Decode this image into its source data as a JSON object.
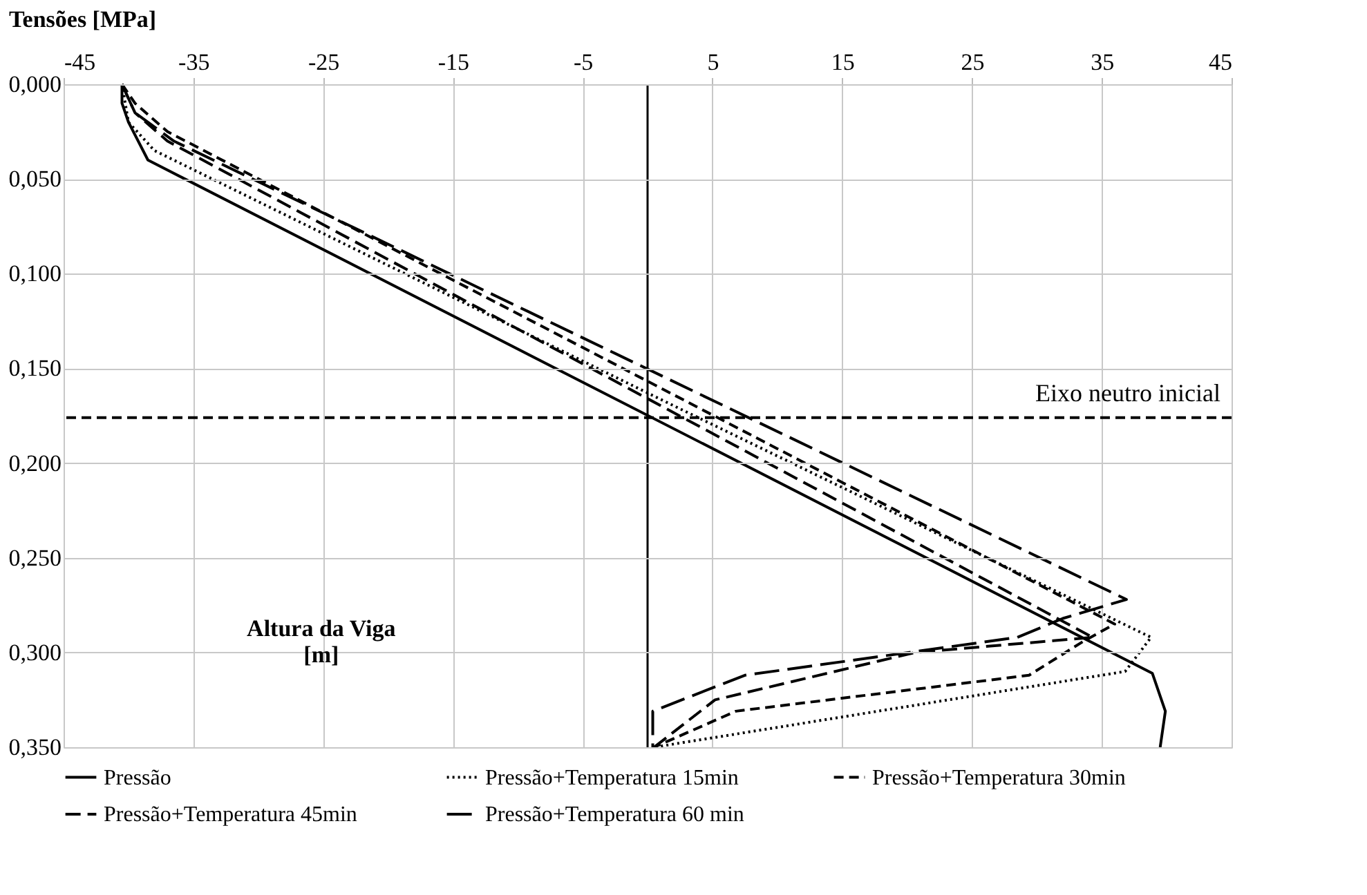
{
  "chart_data": {
    "type": "line",
    "xlabel": "Tensões [MPa]",
    "ylabel": "Altura da Viga [m]",
    "xlim": [
      -45,
      45
    ],
    "xticks": [
      -45,
      -35,
      -25,
      -15,
      -5,
      5,
      15,
      25,
      35,
      45
    ],
    "ylim": [
      0.35,
      0
    ],
    "yticks": [
      {
        "value": 0,
        "label": "0,000"
      },
      {
        "value": 0.05,
        "label": "0,050"
      },
      {
        "value": 0.1,
        "label": "0,100"
      },
      {
        "value": 0.15,
        "label": "0,150"
      },
      {
        "value": 0.2,
        "label": "0,200"
      },
      {
        "value": 0.25,
        "label": "0,250"
      },
      {
        "value": 0.3,
        "label": "0,300"
      },
      {
        "value": 0.35,
        "label": "0,350"
      }
    ],
    "grid": true,
    "legend": "bottom",
    "marker": "none",
    "series": [
      {
        "name": "Pressão",
        "color": "#000000",
        "line_style": "solid",
        "x": [
          -40.5,
          -40.5,
          -40,
          -38.5,
          38.9,
          39.9,
          39.5
        ],
        "values": [
          0,
          0.01,
          0.02,
          0.04,
          0.311,
          0.331,
          0.35
        ]
      },
      {
        "name": "Pressão+Temperatura 15min",
        "color": "#000000",
        "line_style": "dotted",
        "x": [
          -40.5,
          -40,
          -38,
          1.5,
          38.8,
          36.8,
          0.5
        ],
        "values": [
          0,
          0.02,
          0.035,
          0.168,
          0.292,
          0.31,
          0.35
        ]
      },
      {
        "name": "Pressão+Temperatura 30min",
        "color": "#000000",
        "line_style": "dashed",
        "x": [
          -40.5,
          -39.5,
          -37,
          36,
          33.6,
          29.4,
          6.8,
          0.5
        ],
        "values": [
          0,
          0.01,
          0.025,
          0.285,
          0.294,
          0.312,
          0.331,
          0.35
        ]
      },
      {
        "name": "Pressão+Temperatura 45min",
        "color": "#000000",
        "line_style": "dashed",
        "x": [
          -40.5,
          -39.5,
          -37,
          34.3,
          20.6,
          5.2,
          0.5
        ],
        "values": [
          0,
          0.015,
          0.03,
          0.292,
          0.3,
          0.325,
          0.35
        ]
      },
      {
        "name": "Pressão+Temperatura 60 min",
        "color": "#000000",
        "line_style": "dashed",
        "x": [
          -40.5,
          -39.5,
          -36.5,
          36.9,
          32,
          28.5,
          7.5,
          0.4,
          0.4
        ],
        "values": [
          0,
          0.015,
          0.03,
          0.272,
          0.282,
          0.292,
          0.312,
          0.331,
          0.35
        ]
      }
    ],
    "ref_lines": [
      {
        "axis": "x",
        "value": 0,
        "line_style": "solid",
        "color": "#000000"
      },
      {
        "axis": "y",
        "value": 0.176,
        "label": "Eixo neutro inicial",
        "line_style": "dashed",
        "color": "#000000"
      }
    ]
  }
}
